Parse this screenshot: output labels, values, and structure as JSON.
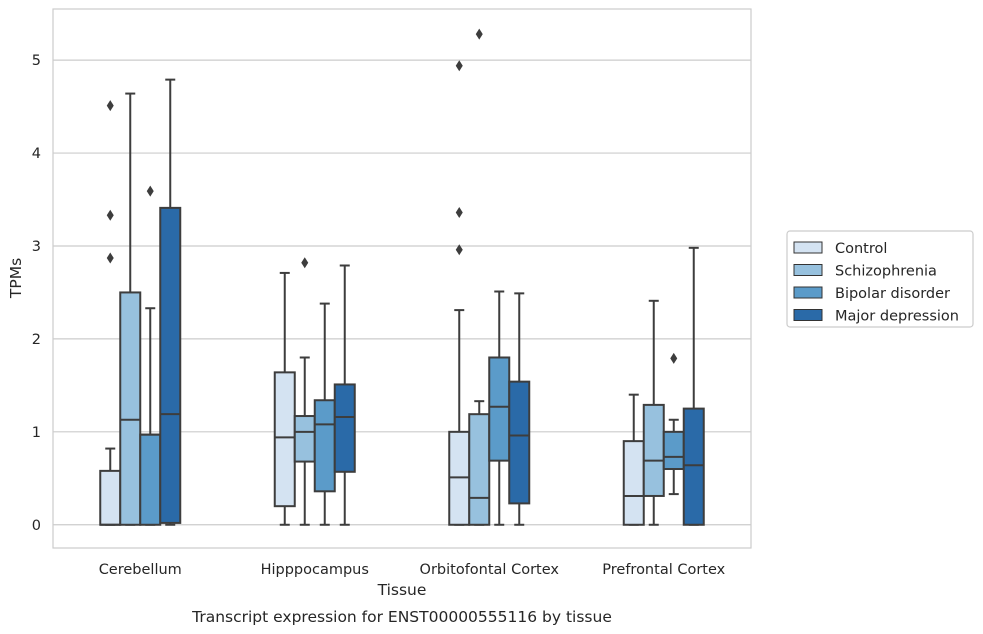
{
  "caption": "Transcript expression for ENST00000555116 by tissue",
  "chart_data": {
    "type": "boxplot",
    "title": "",
    "xlabel": "Tissue",
    "ylabel": "TPMs",
    "ylim": [
      -0.25,
      5.55
    ],
    "yticks": [
      0,
      1,
      2,
      3,
      4,
      5
    ],
    "grid": true,
    "legend_position": "right",
    "categories": [
      "Cerebellum",
      "Hipppocampus",
      "Orbitofontal Cortex",
      "Prefrontal Cortex"
    ],
    "series": [
      {
        "name": "Control",
        "color": "#d4e3f2",
        "boxes": [
          {
            "min": 0,
            "q1": 0,
            "median": 0,
            "q3": 0.58,
            "max": 0.82,
            "outliers": [
              2.87,
              3.33,
              4.51
            ]
          },
          {
            "min": 0,
            "q1": 0.2,
            "median": 0.94,
            "q3": 1.64,
            "max": 2.71,
            "outliers": []
          },
          {
            "min": 0,
            "q1": 0,
            "median": 0.51,
            "q3": 1.0,
            "max": 2.31,
            "outliers": [
              2.96,
              3.36,
              4.94
            ]
          },
          {
            "min": 0,
            "q1": 0,
            "median": 0.31,
            "q3": 0.9,
            "max": 1.4,
            "outliers": []
          }
        ]
      },
      {
        "name": "Schizophrenia",
        "color": "#97c1de",
        "boxes": [
          {
            "min": 0,
            "q1": 0,
            "median": 1.13,
            "q3": 2.5,
            "max": 4.64,
            "outliers": []
          },
          {
            "min": 0,
            "q1": 0.68,
            "median": 1.0,
            "q3": 1.17,
            "max": 1.8,
            "outliers": [
              2.82
            ]
          },
          {
            "min": 0,
            "q1": 0,
            "median": 0.29,
            "q3": 1.19,
            "max": 1.33,
            "outliers": [
              5.28
            ]
          },
          {
            "min": 0,
            "q1": 0.31,
            "median": 0.69,
            "q3": 1.29,
            "max": 2.41,
            "outliers": []
          }
        ]
      },
      {
        "name": "Bipolar disorder",
        "color": "#5b9bc9",
        "boxes": [
          {
            "min": 0,
            "q1": 0,
            "median": 0.97,
            "q3": 0.97,
            "max": 2.33,
            "outliers": [
              3.59
            ]
          },
          {
            "min": 0,
            "q1": 0.36,
            "median": 1.08,
            "q3": 1.34,
            "max": 2.38,
            "outliers": []
          },
          {
            "min": 0,
            "q1": 0.69,
            "median": 1.27,
            "q3": 1.8,
            "max": 2.51,
            "outliers": []
          },
          {
            "min": 0.33,
            "q1": 0.6,
            "median": 0.73,
            "q3": 1.0,
            "max": 1.13,
            "outliers": [
              1.79
            ]
          }
        ]
      },
      {
        "name": "Major depression",
        "color": "#2a6aa8",
        "boxes": [
          {
            "min": 0,
            "q1": 0.02,
            "median": 1.19,
            "q3": 3.41,
            "max": 4.79,
            "outliers": []
          },
          {
            "min": 0,
            "q1": 0.57,
            "median": 1.16,
            "q3": 1.51,
            "max": 2.79,
            "outliers": []
          },
          {
            "min": 0,
            "q1": 0.23,
            "median": 0.96,
            "q3": 1.54,
            "max": 2.49,
            "outliers": []
          },
          {
            "min": 0,
            "q1": 0,
            "median": 0.64,
            "q3": 1.25,
            "max": 2.98,
            "outliers": []
          }
        ]
      }
    ]
  }
}
